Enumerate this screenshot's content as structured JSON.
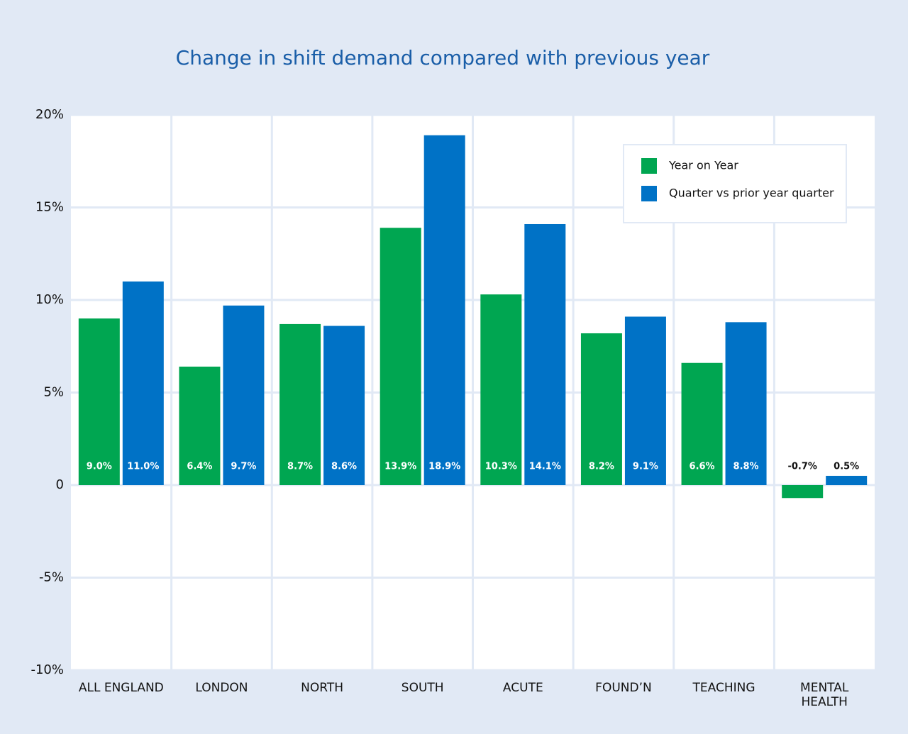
{
  "chart_data": {
    "type": "bar",
    "title": "Change in shift demand compared with previous year",
    "categories": [
      "ALL ENGLAND",
      "LONDON",
      "NORTH",
      "SOUTH",
      "ACUTE",
      "FOUND’N",
      "TEACHING",
      "MENTAL HEALTH"
    ],
    "series": [
      {
        "name": "Year on Year",
        "color": "#00a651",
        "values": [
          9.0,
          6.4,
          8.7,
          13.9,
          10.3,
          8.2,
          6.6,
          -0.7
        ],
        "value_labels": [
          "9.0%",
          "6.4%",
          "8.7%",
          "13.9%",
          "10.3%",
          "8.2%",
          "6.6%",
          "-0.7%"
        ]
      },
      {
        "name": "Quarter vs prior year quarter",
        "color": "#0072c6",
        "values": [
          11.0,
          9.7,
          8.6,
          18.9,
          14.1,
          9.1,
          8.8,
          0.5
        ],
        "value_labels": [
          "11.0%",
          "9.7%",
          "8.6%",
          "18.9%",
          "14.1%",
          "9.1%",
          "8.8%",
          "0.5%"
        ]
      }
    ],
    "ylim": [
      -10,
      20
    ],
    "yticks": [
      {
        "value": -10,
        "label": "-10%"
      },
      {
        "value": -5,
        "label": "-5%"
      },
      0,
      {
        "value": 5,
        "label": "5%"
      },
      {
        "value": 10,
        "label": "10%"
      },
      {
        "value": 15,
        "label": "15%"
      },
      {
        "value": 20,
        "label": "20%"
      }
    ],
    "grid": true,
    "legend": "upper right"
  }
}
